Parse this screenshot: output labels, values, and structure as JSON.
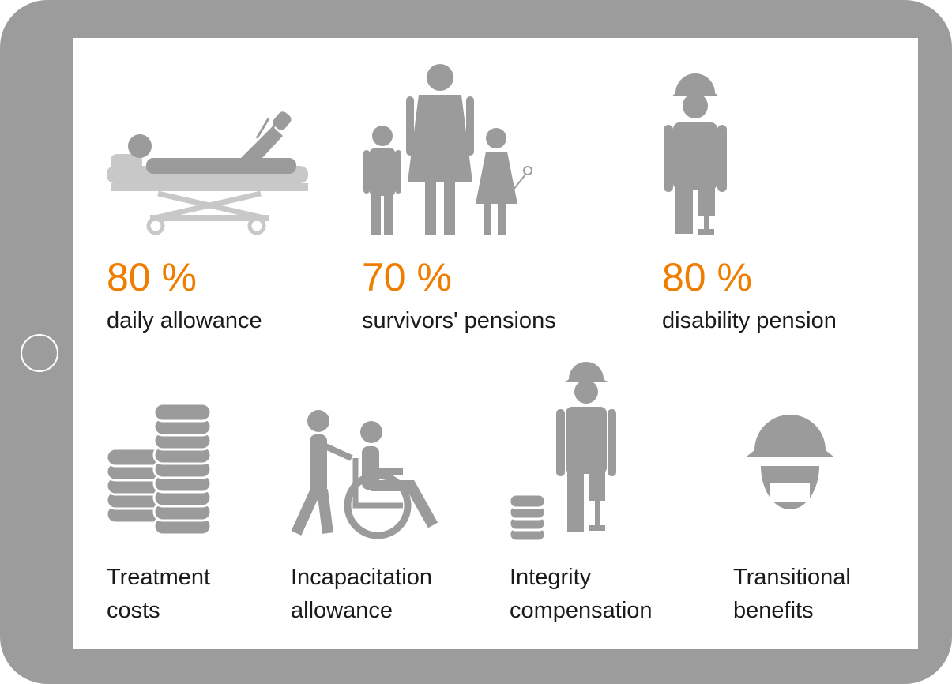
{
  "top_items": [
    {
      "percent": "80 %",
      "label": "daily allowance"
    },
    {
      "percent": "70 %",
      "label": "survivors' pensions"
    },
    {
      "percent": "80 %",
      "label": "disability pension"
    }
  ],
  "bottom_items": [
    {
      "lines": [
        "Treatment",
        "costs"
      ]
    },
    {
      "lines": [
        "Incapacitation",
        "allowance"
      ]
    },
    {
      "lines": [
        "Integrity",
        "compensation"
      ]
    },
    {
      "lines": [
        "Transitional",
        "benefits"
      ]
    }
  ]
}
